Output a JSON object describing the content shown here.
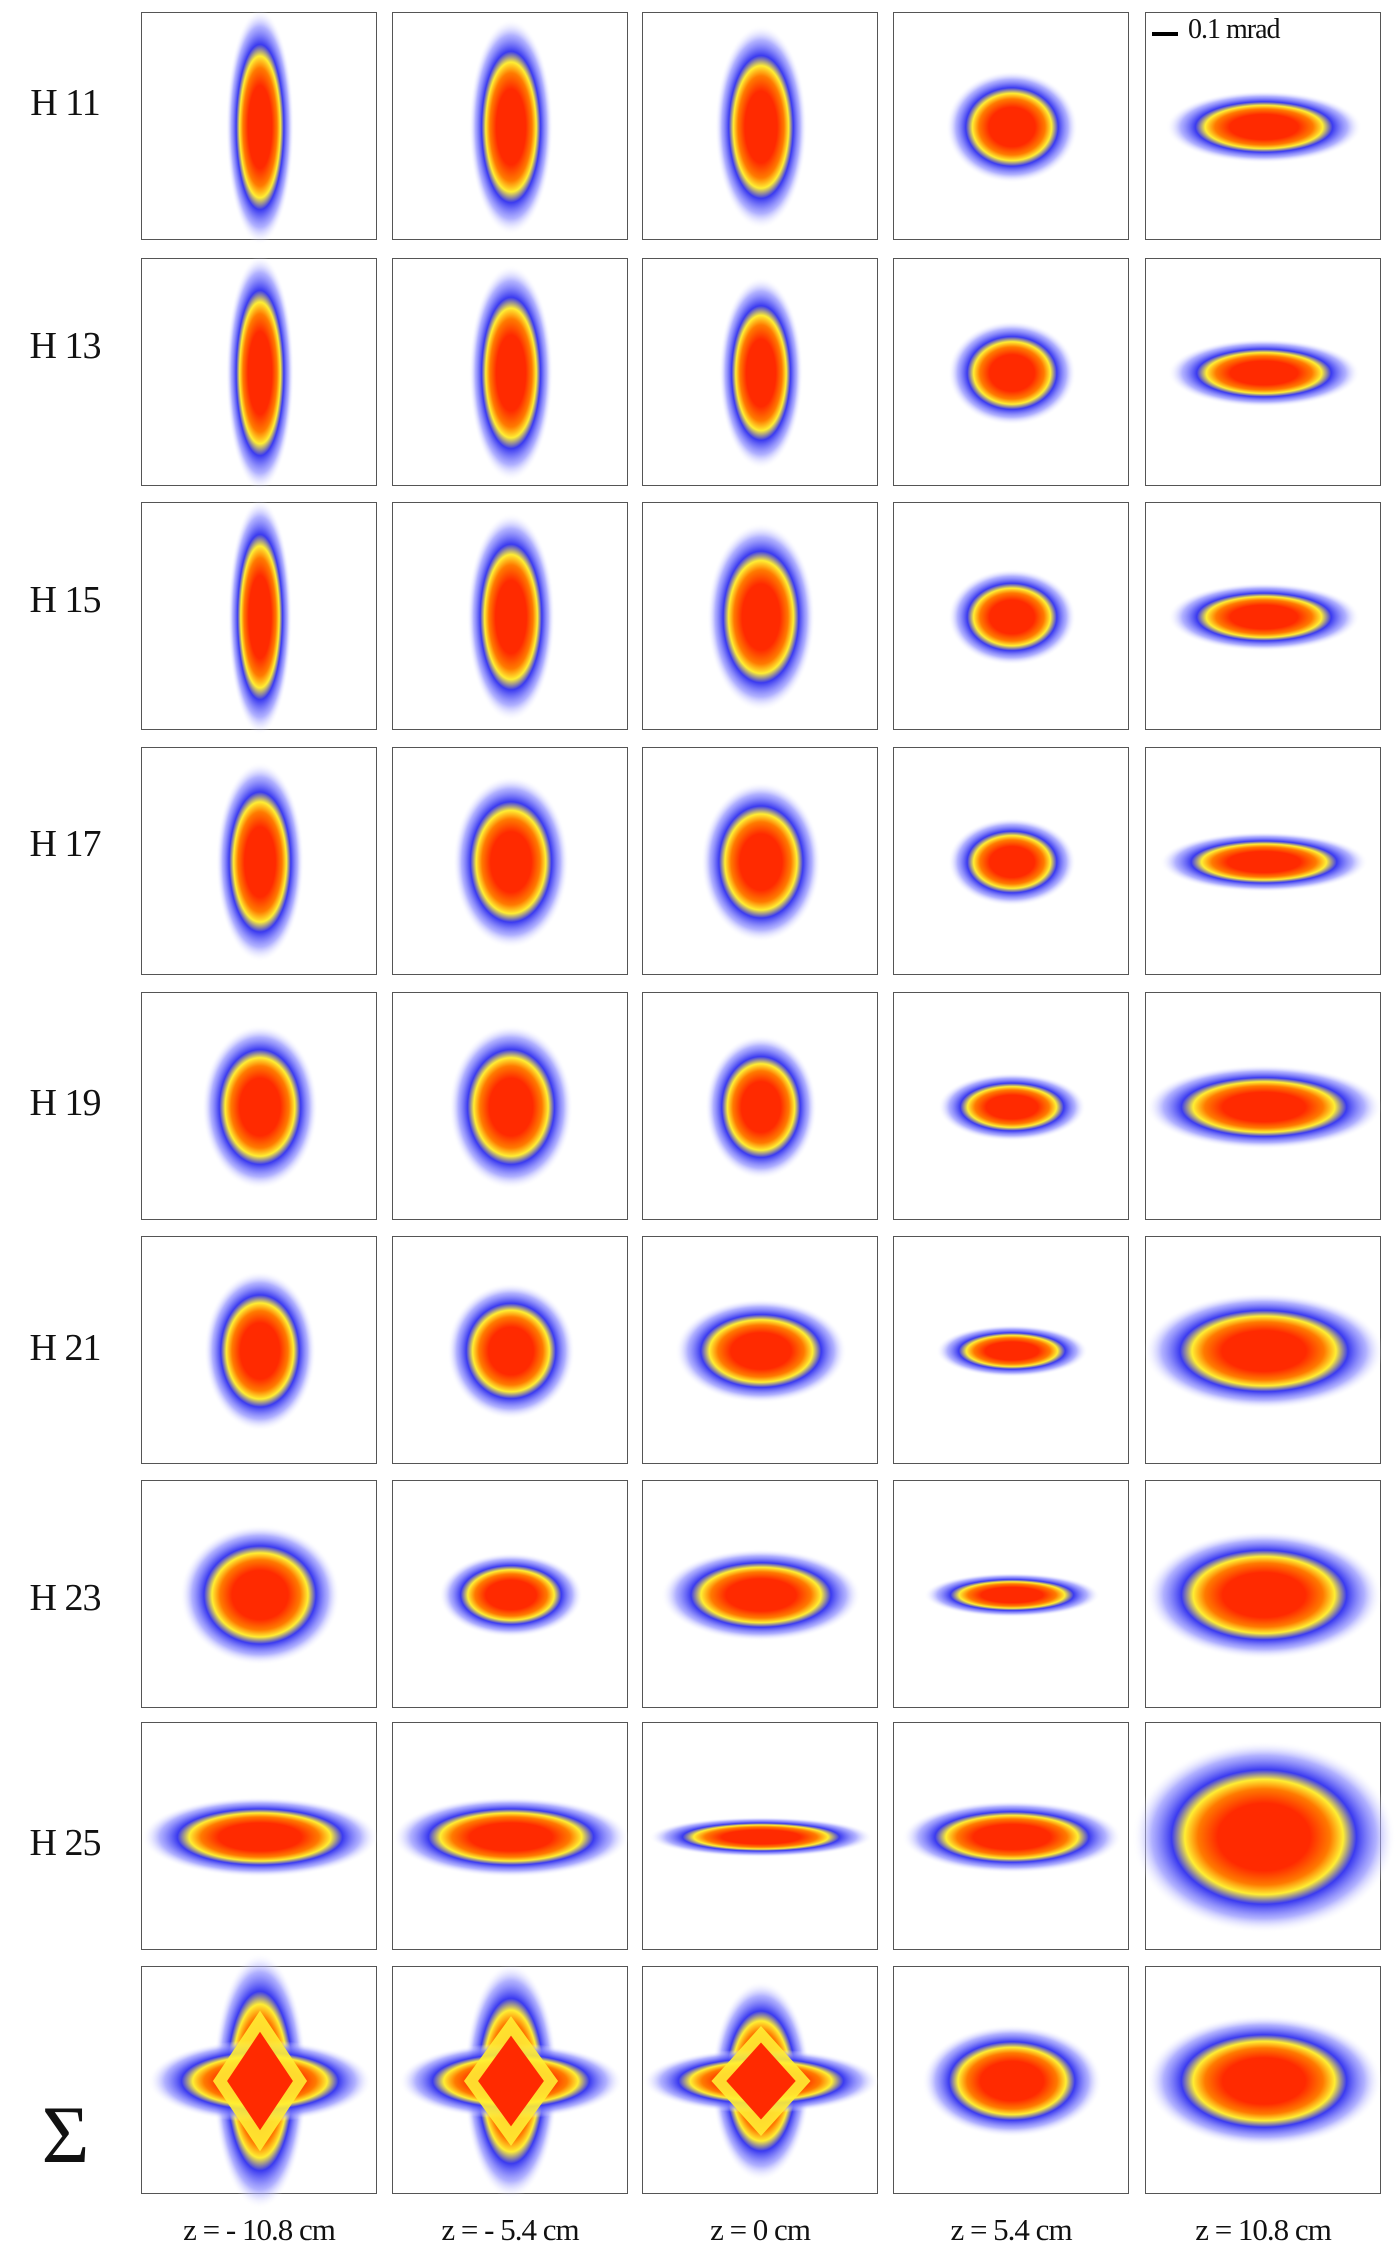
{
  "row_labels": [
    "H 11",
    "H 13",
    "H 15",
    "H 17",
    "H 19",
    "H 21",
    "H 23",
    "H 25",
    "Σ"
  ],
  "column_labels": [
    "z = - 10.8  cm",
    "z = - 5.4 cm",
    "z = 0 cm",
    "z = 5.4 cm",
    "z = 10.8 cm"
  ],
  "scale_bar_label": "0.1 mrad",
  "colors": {
    "core": "#ff2a00",
    "mid": "#ff7a00",
    "ring": "#ffee33",
    "outer": "#3a3af0",
    "halo": "#8f8fff",
    "background": "#ffffff",
    "frame": "#555555"
  }
}
